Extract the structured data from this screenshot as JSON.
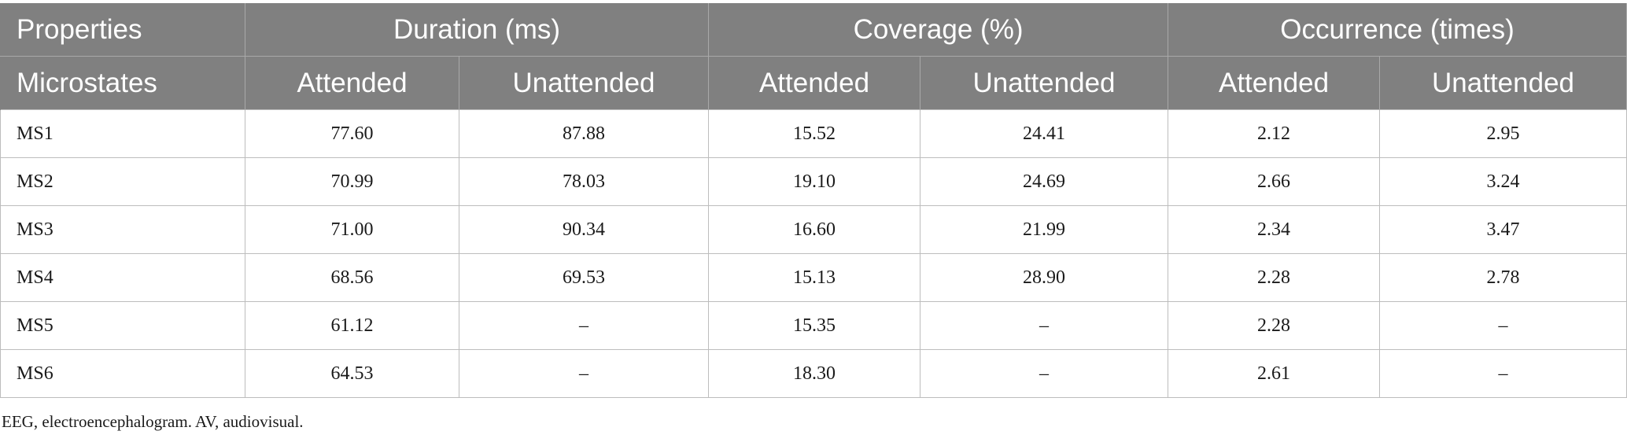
{
  "header": {
    "corner_top": "Properties",
    "corner_bottom": "Microstates",
    "groups": [
      "Duration (ms)",
      "Coverage (%)",
      "Occurrence (times)"
    ],
    "subheaders": [
      "Attended",
      "Unattended",
      "Attended",
      "Unattended",
      "Attended",
      "Unattended"
    ]
  },
  "rows": [
    {
      "label": "MS1",
      "cells": [
        "77.60",
        "87.88",
        "15.52",
        "24.41",
        "2.12",
        "2.95"
      ]
    },
    {
      "label": "MS2",
      "cells": [
        "70.99",
        "78.03",
        "19.10",
        "24.69",
        "2.66",
        "3.24"
      ]
    },
    {
      "label": "MS3",
      "cells": [
        "71.00",
        "90.34",
        "16.60",
        "21.99",
        "2.34",
        "3.47"
      ]
    },
    {
      "label": "MS4",
      "cells": [
        "68.56",
        "69.53",
        "15.13",
        "28.90",
        "2.28",
        "2.78"
      ]
    },
    {
      "label": "MS5",
      "cells": [
        "61.12",
        "–",
        "15.35",
        "–",
        "2.28",
        "–"
      ]
    },
    {
      "label": "MS6",
      "cells": [
        "64.53",
        "–",
        "18.30",
        "–",
        "2.61",
        "–"
      ]
    }
  ],
  "footnote": "EEG, electroencephalogram. AV, audiovisual.",
  "colors": {
    "header_bg": "#808080",
    "header_text": "#ffffff",
    "grid": "#bdbdbd"
  }
}
